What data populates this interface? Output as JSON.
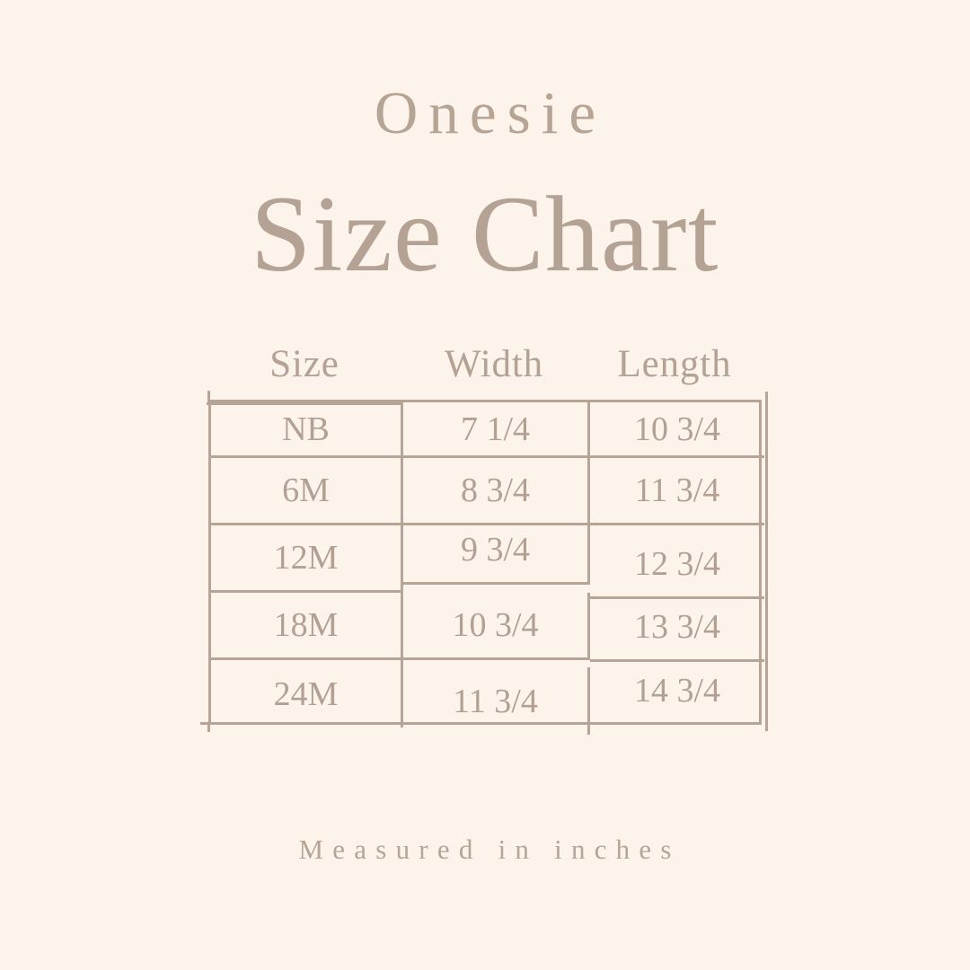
{
  "page": {
    "title_small": "Onesie",
    "title_large": "Size Chart",
    "footer_note": "Measured in inches",
    "colors": {
      "background": "#fcf3eb",
      "text": "#b2a093",
      "line": "#b6a496"
    }
  },
  "table": {
    "headers": [
      "Size",
      "Width",
      "Length"
    ],
    "rows": [
      {
        "size": "NB",
        "width": "7 1/4",
        "length": "10 3/4"
      },
      {
        "size": "6M",
        "width": "8 3/4",
        "length": "11 3/4"
      },
      {
        "size": "12M",
        "width": "9 3/4",
        "length": "12 3/4"
      },
      {
        "size": "18M",
        "width": "10 3/4",
        "length": "13 3/4"
      },
      {
        "size": "24M",
        "width": "11 3/4",
        "length": "14 3/4"
      }
    ]
  },
  "chart_data": {
    "type": "table",
    "title": "Onesie Size Chart",
    "columns": [
      "Size",
      "Width",
      "Length"
    ],
    "rows": [
      [
        "NB",
        "7 1/4",
        "10 3/4"
      ],
      [
        "6M",
        "8 3/4",
        "11 3/4"
      ],
      [
        "12M",
        "9 3/4",
        "12 3/4"
      ],
      [
        "18M",
        "10 3/4",
        "13 3/4"
      ],
      [
        "24M",
        "11 3/4",
        "14 3/4"
      ]
    ],
    "units": "inches",
    "note": "Measured in inches"
  }
}
